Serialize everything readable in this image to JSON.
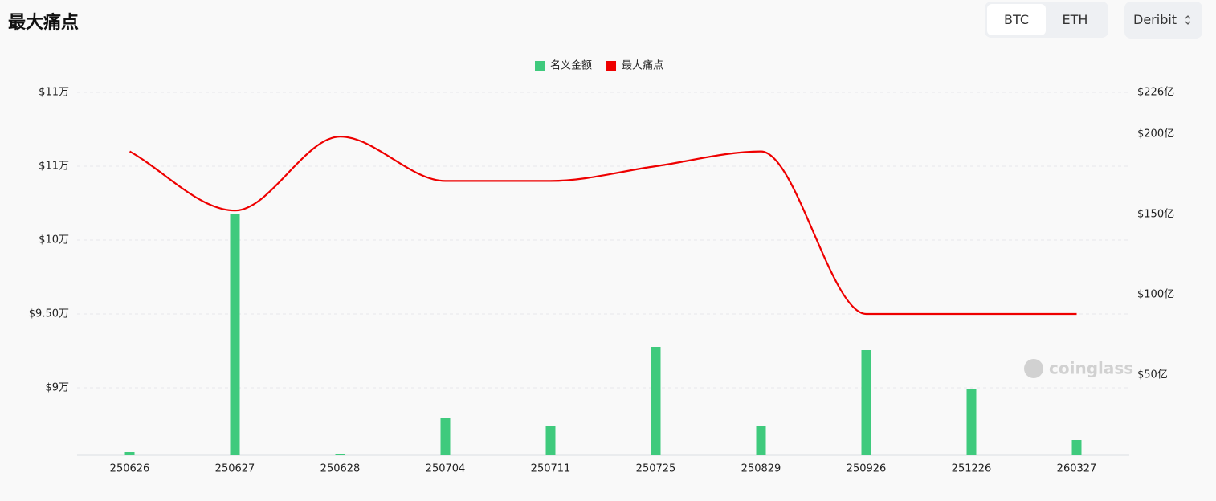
{
  "header": {
    "title": "最大痛点",
    "tabs": [
      "BTC",
      "ETH"
    ],
    "exchange": "Deribit"
  },
  "chart_data": {
    "type": "combo",
    "categories": [
      "250626",
      "250627",
      "250628",
      "250704",
      "250711",
      "250725",
      "250829",
      "250926",
      "251226",
      "260327"
    ],
    "series": [
      {
        "name": "名义金额",
        "type": "bar",
        "color": "#3fca7d",
        "axis": "y2",
        "values": [
          2,
          150,
          0.5,
          23.5,
          18.5,
          67.5,
          18.5,
          65.5,
          41,
          9.5
        ]
      },
      {
        "name": "最大痛点",
        "type": "line",
        "color": "#ee0000",
        "values": [
          106000,
          102000,
          107000,
          104000,
          104000,
          105000,
          106000,
          95000,
          95000,
          95000
        ]
      }
    ],
    "ylim": [
      85435,
      110000
    ],
    "yticks": [
      {
        "value": 90000,
        "label": "$9万"
      },
      {
        "value": 95000,
        "label": "$9.50万"
      },
      {
        "value": 100000,
        "label": "$10万"
      },
      {
        "value": 105000,
        "label": "$11万"
      },
      {
        "value": 110000,
        "label": "$11万"
      }
    ],
    "y2lim": [
      0,
      226
    ],
    "y2ticks": [
      {
        "value": 50,
        "label": "$50亿"
      },
      {
        "value": 100,
        "label": "$100亿"
      },
      {
        "value": 150,
        "label": "$150亿"
      },
      {
        "value": 200,
        "label": "$200亿"
      },
      {
        "value": 226,
        "label": "$226亿"
      }
    ],
    "grid": true,
    "watermark": "coinglass"
  }
}
